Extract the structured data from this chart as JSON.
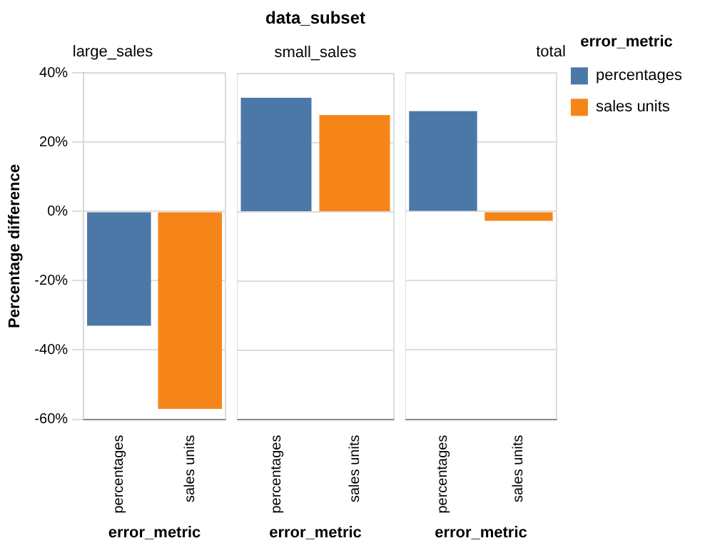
{
  "chart_data": [
    {
      "type": "bar",
      "subtitle": "large_sales",
      "xlabel": "error_metric",
      "ylabel": "Percentage difference",
      "categories": [
        "percentages",
        "sales units"
      ],
      "series": [
        {
          "color": "#4c78a8",
          "values": [
            -33,
            null
          ]
        },
        {
          "color": "#f58518",
          "values": [
            null,
            -57
          ]
        }
      ],
      "ylim": [
        -60,
        40
      ],
      "yticks": [
        {
          "value": -60,
          "label": "-60%"
        },
        {
          "value": -40,
          "label": "-40%"
        },
        {
          "value": -20,
          "label": "-20%"
        },
        {
          "value": 0,
          "label": "0%"
        },
        {
          "value": 20,
          "label": "20%"
        },
        {
          "value": 40,
          "label": "40%"
        }
      ],
      "grid": "y"
    },
    {
      "type": "bar",
      "title": "data_subset",
      "subtitle": "small_sales",
      "xlabel": "error_metric",
      "categories": [
        "percentages",
        "sales units"
      ],
      "series": [
        {
          "color": "#4c78a8",
          "values": [
            33,
            null
          ]
        },
        {
          "color": "#f58518",
          "values": [
            null,
            28
          ]
        }
      ],
      "ylim": [
        -60,
        40
      ],
      "yticks": [
        {
          "value": -60,
          "label": null
        },
        {
          "value": -40,
          "label": null
        },
        {
          "value": -20,
          "label": null
        },
        {
          "value": 0,
          "label": null
        },
        {
          "value": 20,
          "label": null
        },
        {
          "value": 40,
          "label": null
        }
      ],
      "grid": "y",
      "tick_labels": "x"
    },
    {
      "type": "bar",
      "subtitle": "total",
      "xlabel": "error_metric",
      "categories": [
        "percentages",
        "sales units"
      ],
      "series": [
        {
          "name": "percentages",
          "color": "#4c78a8",
          "values": [
            29,
            null
          ]
        },
        {
          "name": "sales units",
          "color": "#f58518",
          "values": [
            null,
            -2.7
          ]
        }
      ],
      "ylim": [
        -60,
        40
      ],
      "yticks": [
        {
          "value": -60,
          "label": null
        },
        {
          "value": -40,
          "label": null
        },
        {
          "value": -20,
          "label": null
        },
        {
          "value": 0,
          "label": null
        },
        {
          "value": 20,
          "label": null
        },
        {
          "value": 40,
          "label": null
        }
      ],
      "grid": "y",
      "tick_labels": "x",
      "legend": "top right",
      "legend_title": "error_metric"
    }
  ]
}
